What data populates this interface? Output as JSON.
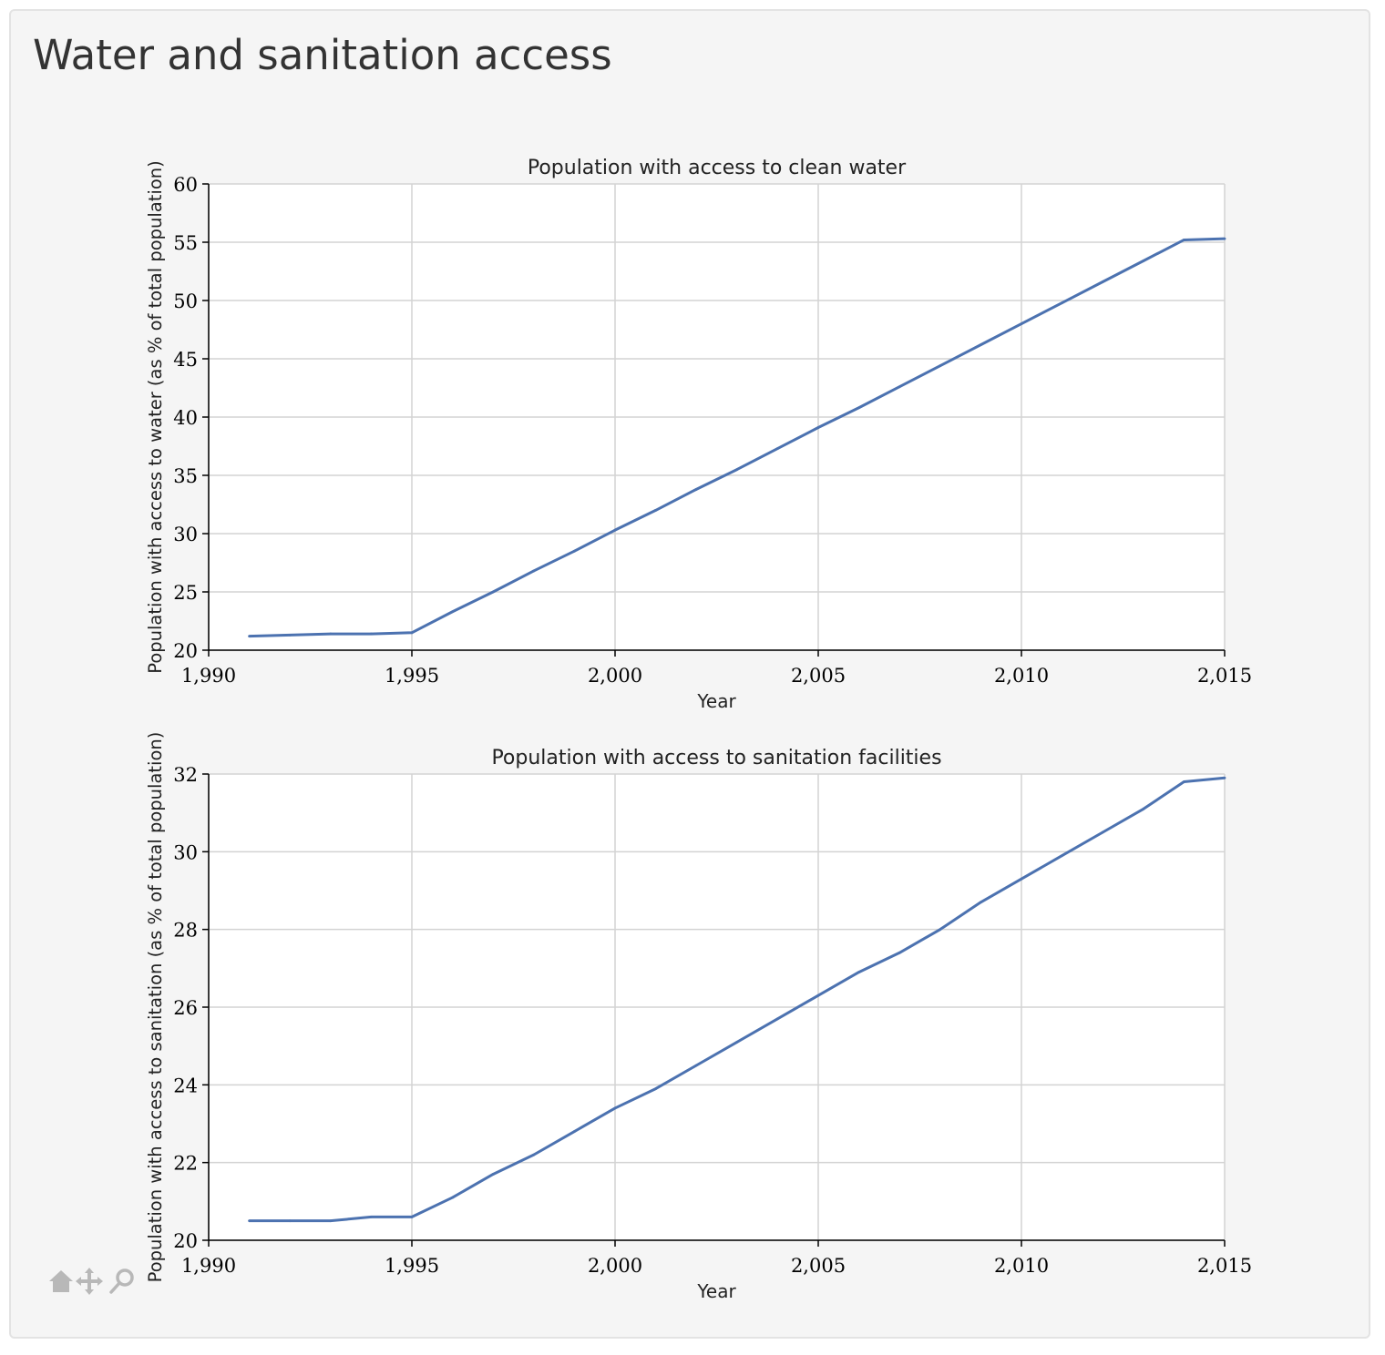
{
  "page": {
    "title": "Water and sanitation access"
  },
  "toolbar": {
    "icons": [
      "home-icon",
      "pan-icon",
      "zoom-icon"
    ],
    "color": "#b8b8b8"
  },
  "style": {
    "line_color": "#4c72b0",
    "grid_color": "#d3d3d3",
    "panel_background": "#f5f5f5",
    "plot_background": "#ffffff"
  },
  "chart_data": [
    {
      "type": "line",
      "title": "Population with access to clean water",
      "xlabel": "Year",
      "ylabel": "Population with access to water (as % of total population)",
      "xlim": [
        1990,
        2015
      ],
      "ylim": [
        20,
        60
      ],
      "xticks": [
        1990,
        1995,
        2000,
        2005,
        2010,
        2015
      ],
      "xtick_labels": [
        "1,990",
        "1,995",
        "2,000",
        "2,005",
        "2,010",
        "2,015"
      ],
      "yticks": [
        20,
        25,
        30,
        35,
        40,
        45,
        50,
        55,
        60
      ],
      "ytick_labels": [
        "20",
        "25",
        "30",
        "35",
        "40",
        "45",
        "50",
        "55",
        "60"
      ],
      "grid": true,
      "series": [
        {
          "x": [
            1991,
            1992,
            1993,
            1994,
            1995,
            1996,
            1997,
            1998,
            1999,
            2000,
            2001,
            2002,
            2003,
            2004,
            2005,
            2006,
            2007,
            2008,
            2009,
            2010,
            2011,
            2012,
            2013,
            2014,
            2015
          ],
          "y": [
            21.2,
            21.3,
            21.4,
            21.4,
            21.5,
            23.3,
            25.0,
            26.8,
            28.5,
            30.3,
            32.0,
            33.8,
            35.5,
            37.3,
            39.1,
            40.8,
            42.6,
            44.4,
            46.2,
            48.0,
            49.8,
            51.6,
            53.4,
            55.2,
            55.3
          ]
        }
      ]
    },
    {
      "type": "line",
      "title": "Population with access to sanitation facilities",
      "xlabel": "Year",
      "ylabel": "Population with access to sanitation (as % of total population)",
      "xlim": [
        1990,
        2015
      ],
      "ylim": [
        20,
        32
      ],
      "xticks": [
        1990,
        1995,
        2000,
        2005,
        2010,
        2015
      ],
      "xtick_labels": [
        "1,990",
        "1,995",
        "2,000",
        "2,005",
        "2,010",
        "2,015"
      ],
      "yticks": [
        20,
        22,
        24,
        26,
        28,
        30,
        32
      ],
      "ytick_labels": [
        "20",
        "22",
        "24",
        "26",
        "28",
        "30",
        "32"
      ],
      "grid": true,
      "series": [
        {
          "x": [
            1991,
            1992,
            1993,
            1994,
            1995,
            1996,
            1997,
            1998,
            1999,
            2000,
            2001,
            2002,
            2003,
            2004,
            2005,
            2006,
            2007,
            2008,
            2009,
            2010,
            2011,
            2012,
            2013,
            2014,
            2015
          ],
          "y": [
            20.5,
            20.5,
            20.5,
            20.6,
            20.6,
            21.1,
            21.7,
            22.2,
            22.8,
            23.4,
            23.9,
            24.5,
            25.1,
            25.7,
            26.3,
            26.9,
            27.4,
            28.0,
            28.7,
            29.3,
            29.9,
            30.5,
            31.1,
            31.8,
            31.9
          ]
        }
      ]
    }
  ]
}
